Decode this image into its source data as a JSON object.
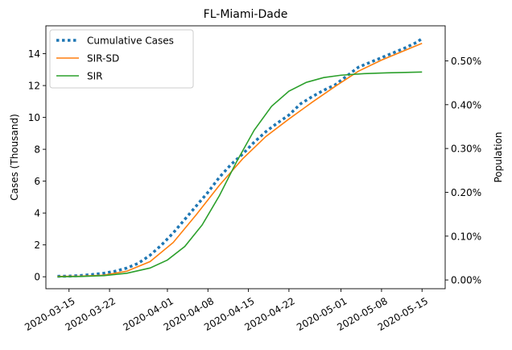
{
  "chart_data": {
    "type": "line",
    "title": "FL-Miami-Dade",
    "ylabel": "Cases (Thousand)",
    "y2label": "Population",
    "x_ticks": [
      "2020-03-15",
      "2020-03-22",
      "2020-04-01",
      "2020-04-08",
      "2020-04-15",
      "2020-04-22",
      "2020-05-01",
      "2020-05-08",
      "2020-05-15"
    ],
    "y_ticks": [
      "0",
      "2",
      "4",
      "6",
      "8",
      "10",
      "12",
      "14"
    ],
    "y2_ticks": [
      "0.00%",
      "0.10%",
      "0.20%",
      "0.30%",
      "0.40%",
      "0.50%"
    ],
    "xlim": [
      "2020-03-11",
      "2020-05-19"
    ],
    "ylim": [
      -0.75,
      15.75
    ],
    "y2_lim_percent": [
      -0.02,
      0.58
    ],
    "legend_position": "upper left",
    "grid": false,
    "series": [
      {
        "name": "Cumulative Cases",
        "style": "dotted",
        "color": "#1f77b4",
        "x": [
          "2020-03-13",
          "2020-03-15",
          "2020-03-17",
          "2020-03-19",
          "2020-03-21",
          "2020-03-23",
          "2020-03-25",
          "2020-03-27",
          "2020-03-29",
          "2020-03-31",
          "2020-04-02",
          "2020-04-04",
          "2020-04-06",
          "2020-04-08",
          "2020-04-10",
          "2020-04-12",
          "2020-04-14",
          "2020-04-16",
          "2020-04-18",
          "2020-04-20",
          "2020-04-22",
          "2020-04-24",
          "2020-04-26",
          "2020-04-28",
          "2020-04-30",
          "2020-05-02",
          "2020-05-04",
          "2020-05-06",
          "2020-05-08",
          "2020-05-10",
          "2020-05-12",
          "2020-05-14",
          "2020-05-15"
        ],
        "y": [
          0.03,
          0.04,
          0.08,
          0.14,
          0.22,
          0.35,
          0.55,
          0.85,
          1.35,
          2.0,
          2.75,
          3.6,
          4.45,
          5.3,
          6.25,
          7.05,
          7.7,
          8.45,
          9.1,
          9.65,
          10.15,
          10.85,
          11.3,
          11.7,
          12.05,
          12.6,
          13.15,
          13.45,
          13.75,
          14.05,
          14.35,
          14.7,
          14.95
        ]
      },
      {
        "name": "SIR-SD",
        "style": "solid",
        "color": "#ff7f0e",
        "x": [
          "2020-03-13",
          "2020-03-17",
          "2020-03-21",
          "2020-03-25",
          "2020-03-29",
          "2020-04-02",
          "2020-04-06",
          "2020-04-10",
          "2020-04-14",
          "2020-04-18",
          "2020-04-22",
          "2020-04-26",
          "2020-04-30",
          "2020-05-04",
          "2020-05-08",
          "2020-05-12",
          "2020-05-15"
        ],
        "y": [
          0.02,
          0.04,
          0.1,
          0.35,
          0.95,
          2.15,
          3.9,
          5.75,
          7.4,
          8.8,
          9.9,
          10.95,
          11.95,
          12.9,
          13.6,
          14.2,
          14.65
        ]
      },
      {
        "name": "SIR",
        "style": "solid",
        "color": "#2ca02c",
        "x": [
          "2020-03-13",
          "2020-03-17",
          "2020-03-21",
          "2020-03-25",
          "2020-03-29",
          "2020-04-01",
          "2020-04-04",
          "2020-04-07",
          "2020-04-10",
          "2020-04-13",
          "2020-04-16",
          "2020-04-19",
          "2020-04-22",
          "2020-04-25",
          "2020-04-28",
          "2020-05-01",
          "2020-05-05",
          "2020-05-09",
          "2020-05-15"
        ],
        "y": [
          0.0,
          0.02,
          0.07,
          0.22,
          0.55,
          1.05,
          1.9,
          3.25,
          5.1,
          7.25,
          9.2,
          10.7,
          11.65,
          12.2,
          12.5,
          12.65,
          12.75,
          12.8,
          12.85
        ]
      }
    ]
  }
}
